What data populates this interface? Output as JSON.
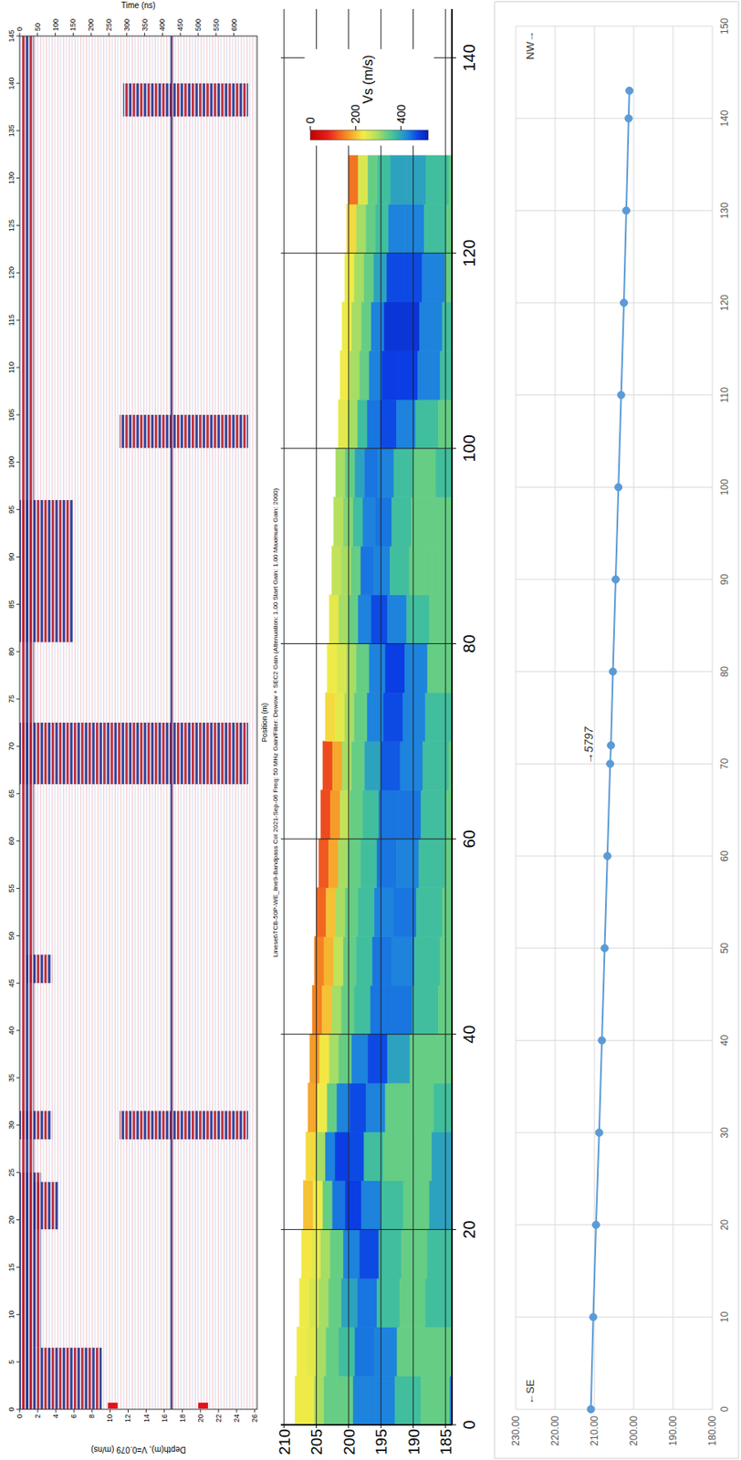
{
  "chart_data": [
    {
      "type": "radargram",
      "xlabel": "Position (m)",
      "xlim": [
        0,
        145
      ],
      "xticks": [
        0,
        5,
        10,
        15,
        20,
        25,
        30,
        35,
        40,
        45,
        50,
        55,
        60,
        65,
        70,
        75,
        80,
        85,
        90,
        95,
        100,
        105,
        110,
        115,
        120,
        125,
        130,
        135,
        140,
        145
      ],
      "ylabel": "Depth(m), V=0.079 (m/ns)",
      "ylim": [
        0,
        26.27
      ],
      "yticks": [
        0,
        2,
        4,
        6,
        8,
        10,
        12,
        14,
        16,
        18,
        20,
        22,
        24,
        26
      ],
      "y2label": "Time (ns)",
      "y2lim": [
        0,
        665
      ],
      "y2ticks": [
        0,
        50,
        100,
        150,
        200,
        250,
        300,
        350,
        400,
        450,
        500,
        550,
        600
      ],
      "caption": "Lineset\\TCB-50P-WE_line9-Bandpass Col 2021-Sep-06 Freq: 50 MHz Gain/Filter: Dewow + SEC2 Gain (Attenuation: 1.00 Start Gain: 1.00 Maximum Gain: 2000)",
      "reflections": [
        {
          "x_range": [
            0,
            145
          ],
          "t_range": [
            5,
            40
          ]
        },
        {
          "x_range": [
            0,
            6.5
          ],
          "t_range": [
            0,
            230
          ]
        },
        {
          "x_range": [
            6.5,
            25
          ],
          "t_range": [
            0,
            60
          ]
        },
        {
          "x_range": [
            19,
            24
          ],
          "t_range": [
            40,
            110
          ]
        },
        {
          "x_range": [
            28.5,
            31.5
          ],
          "t_range": [
            0,
            90
          ]
        },
        {
          "x_range": [
            28.5,
            31.5
          ],
          "t_range": [
            280,
            640
          ]
        },
        {
          "x_range": [
            45,
            48
          ],
          "t_range": [
            20,
            90
          ]
        },
        {
          "x_range": [
            66,
            72.5
          ],
          "t_range": [
            0,
            640
          ]
        },
        {
          "x_range": [
            81,
            96
          ],
          "t_range": [
            0,
            150
          ]
        },
        {
          "x_range": [
            101.5,
            105
          ],
          "t_range": [
            280,
            640
          ]
        },
        {
          "x_range": [
            136.5,
            140
          ],
          "t_range": [
            290,
            640
          ]
        }
      ],
      "horizon_time": 425,
      "depth_markers": [
        10.3,
        20.3
      ]
    },
    {
      "type": "heatmap",
      "xlim": [
        0,
        145
      ],
      "xticks": [
        0,
        20,
        40,
        60,
        80,
        100,
        120,
        140
      ],
      "ylim": [
        184,
        210.5
      ],
      "yticks": [
        185,
        190,
        195,
        200,
        205,
        210
      ],
      "grid": true,
      "x_edges": [
        0,
        5,
        10,
        15,
        20,
        25,
        30,
        35,
        40,
        45,
        50,
        55,
        60,
        65,
        70,
        75,
        80,
        85,
        90,
        95,
        100,
        105,
        110,
        115,
        120,
        125,
        130
      ],
      "top": [
        208.3,
        208.0,
        207.6,
        207.3,
        207.0,
        206.6,
        206.3,
        206.0,
        205.6,
        205.3,
        205.0,
        204.6,
        204.3,
        204.0,
        203.6,
        203.3,
        203.0,
        202.6,
        202.3,
        202.0,
        201.6,
        201.3,
        201.0,
        200.6,
        200.3,
        200.0
      ],
      "depth_edges": [
        0,
        1.5,
        3,
        4.5,
        6.5,
        9,
        12,
        15.5,
        19.5,
        24,
        30
      ],
      "values": [
        [
          240,
          240,
          300,
          340,
          340,
          430,
          430,
          370,
          340,
          430
        ],
        [
          240,
          250,
          300,
          340,
          370,
          440,
          430,
          340,
          340,
          440
        ],
        [
          240,
          260,
          300,
          340,
          400,
          440,
          370,
          340,
          370,
          440
        ],
        [
          230,
          250,
          300,
          340,
          430,
          470,
          370,
          340,
          370,
          430
        ],
        [
          200,
          240,
          340,
          440,
          480,
          430,
          370,
          340,
          400,
          430
        ],
        [
          220,
          300,
          430,
          480,
          470,
          370,
          340,
          340,
          400,
          440
        ],
        [
          180,
          240,
          340,
          430,
          470,
          430,
          340,
          340,
          370,
          430
        ],
        [
          170,
          230,
          300,
          340,
          430,
          470,
          400,
          340,
          340,
          400
        ],
        [
          150,
          200,
          300,
          340,
          370,
          440,
          440,
          370,
          340,
          370
        ],
        [
          150,
          190,
          280,
          340,
          370,
          440,
          430,
          370,
          340,
          370
        ],
        [
          130,
          200,
          300,
          340,
          370,
          430,
          440,
          370,
          340,
          340
        ],
        [
          120,
          180,
          300,
          340,
          370,
          440,
          430,
          370,
          340,
          370
        ],
        [
          110,
          170,
          280,
          340,
          370,
          440,
          440,
          370,
          340,
          370
        ],
        [
          110,
          180,
          300,
          340,
          400,
          460,
          430,
          370,
          340,
          370
        ],
        [
          220,
          250,
          300,
          340,
          430,
          470,
          430,
          370,
          340,
          370
        ],
        [
          240,
          260,
          300,
          340,
          430,
          480,
          430,
          340,
          340,
          370
        ],
        [
          250,
          300,
          340,
          430,
          470,
          430,
          370,
          340,
          340,
          370
        ],
        [
          280,
          300,
          340,
          440,
          430,
          370,
          340,
          340,
          340,
          340
        ],
        [
          290,
          320,
          370,
          430,
          440,
          370,
          340,
          340,
          370,
          340
        ],
        [
          300,
          340,
          400,
          440,
          430,
          370,
          340,
          370,
          340,
          340
        ],
        [
          250,
          300,
          370,
          440,
          470,
          430,
          370,
          340,
          370,
          340
        ],
        [
          240,
          300,
          340,
          430,
          480,
          480,
          430,
          370,
          370,
          340
        ],
        [
          240,
          300,
          340,
          430,
          490,
          490,
          430,
          370,
          340,
          340
        ],
        [
          240,
          300,
          340,
          400,
          470,
          470,
          430,
          340,
          340,
          340
        ],
        [
          220,
          300,
          340,
          370,
          430,
          430,
          370,
          340,
          340,
          340
        ],
        [
          140,
          260,
          340,
          370,
          400,
          400,
          370,
          340,
          340,
          340
        ]
      ],
      "colorbar": {
        "title": "Vs (m/s)",
        "range": [
          0,
          520
        ],
        "ticks": [
          0,
          200,
          400
        ]
      }
    },
    {
      "type": "line",
      "x": [
        0,
        10,
        20,
        30,
        40,
        50,
        60,
        70,
        72,
        80,
        90,
        100,
        110,
        120,
        130,
        140,
        143
      ],
      "values": [
        210.9,
        210.3,
        209.6,
        208.8,
        208.1,
        207.4,
        206.7,
        206.0,
        205.8,
        205.3,
        204.6,
        203.9,
        203.2,
        202.5,
        201.9,
        201.3,
        201.1
      ],
      "xlim": [
        0,
        150
      ],
      "xticks": [
        0,
        10,
        20,
        30,
        40,
        50,
        60,
        70,
        80,
        90,
        100,
        110,
        120,
        130,
        140,
        150
      ],
      "ylim": [
        180,
        230
      ],
      "yticks": [
        {
          "value": 180,
          "label": "180.00"
        },
        {
          "value": 190,
          "label": "190.00"
        },
        {
          "value": 200,
          "label": "200.00"
        },
        {
          "value": 210,
          "label": "210.00"
        },
        {
          "value": 220,
          "label": "220.00"
        },
        {
          "value": 230,
          "label": "230.00"
        }
      ],
      "grid": true,
      "color": "#5b9bd5",
      "marker": "circle",
      "direction_labels": [
        "←SE",
        "NW→"
      ],
      "annotations": [
        {
          "text": "→5797",
          "x": 72
        }
      ]
    }
  ]
}
